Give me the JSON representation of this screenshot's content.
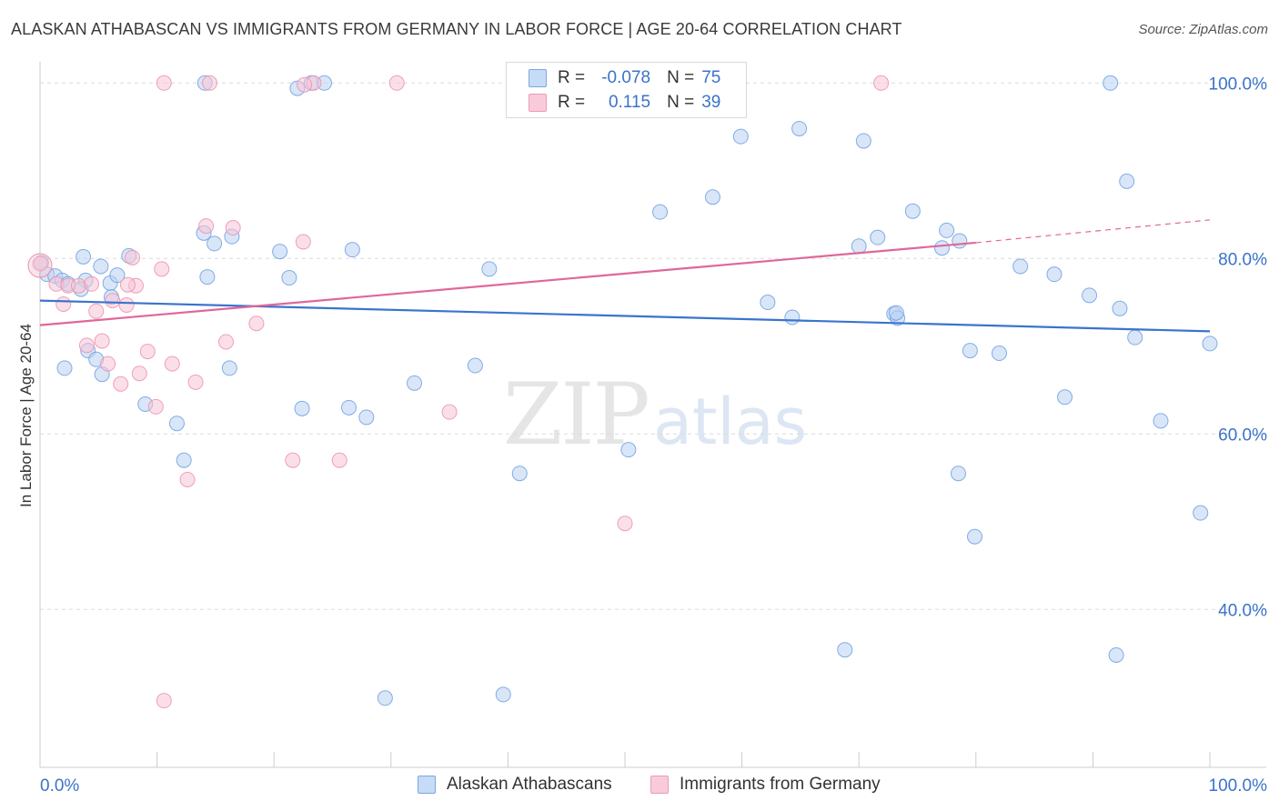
{
  "title": "ALASKAN ATHABASCAN VS IMMIGRANTS FROM GERMANY IN LABOR FORCE | AGE 20-64 CORRELATION CHART",
  "source": "Source: ZipAtlas.com",
  "watermark": {
    "zip": "ZIP",
    "atlas": "atlas"
  },
  "stats": [
    {
      "r_label": "R =",
      "r_value": "-0.078",
      "n_label": "N =",
      "n_value": "75",
      "color": "#a8c8f0"
    },
    {
      "r_label": "R =",
      "r_value": " 0.115",
      "n_label": "N =",
      "n_value": "39",
      "color": "#f4b8cb"
    }
  ],
  "chart_data": {
    "type": "scatter",
    "title": "ALASKAN ATHABASCAN VS IMMIGRANTS FROM GERMANY IN LABOR FORCE | AGE 20-64 CORRELATION CHART",
    "xlabel": "",
    "ylabel": "In Labor Force | Age 20-64",
    "xlim": [
      0,
      100
    ],
    "ylim": [
      22,
      102
    ],
    "x_tick_labels": [
      "0.0%",
      "100.0%"
    ],
    "y_ticks": [
      40,
      60,
      80,
      100
    ],
    "y_tick_labels": [
      "40.0%",
      "60.0%",
      "80.0%",
      "100.0%"
    ],
    "grid": true,
    "legend_position": "bottom",
    "series": [
      {
        "name": "Alaskan Athabascans",
        "color": "#6fa0e0",
        "fill": "#b9d1f2",
        "line_color": "#3a74cc",
        "trend": {
          "x": [
            0,
            100
          ],
          "y": [
            75.2,
            71.7
          ]
        },
        "points": [
          [
            0.1,
            79.5
          ],
          [
            0.6,
            78.2
          ],
          [
            1.3,
            78.0
          ],
          [
            1.9,
            77.5
          ],
          [
            2.4,
            77.1
          ],
          [
            2.1,
            67.5
          ],
          [
            3.9,
            77.5
          ],
          [
            3.7,
            80.2
          ],
          [
            3.5,
            76.5
          ],
          [
            4.1,
            69.5
          ],
          [
            4.8,
            68.5
          ],
          [
            5.2,
            79.1
          ],
          [
            6.0,
            77.2
          ],
          [
            6.6,
            78.1
          ],
          [
            7.6,
            80.3
          ],
          [
            6.1,
            75.6
          ],
          [
            5.3,
            66.8
          ],
          [
            9.0,
            63.4
          ],
          [
            11.7,
            61.2
          ],
          [
            12.3,
            57.0
          ],
          [
            14.3,
            77.9
          ],
          [
            14.9,
            81.7
          ],
          [
            14.0,
            82.9
          ],
          [
            16.4,
            82.5
          ],
          [
            16.2,
            67.5
          ],
          [
            20.5,
            80.8
          ],
          [
            21.3,
            77.8
          ],
          [
            22.4,
            62.9
          ],
          [
            26.4,
            63.0
          ],
          [
            26.7,
            81.0
          ],
          [
            27.9,
            61.9
          ],
          [
            22.0,
            99.4
          ],
          [
            23.2,
            100.0
          ],
          [
            14.1,
            100.0
          ],
          [
            24.3,
            100.0
          ],
          [
            32.0,
            65.8
          ],
          [
            37.2,
            67.8
          ],
          [
            38.4,
            78.8
          ],
          [
            41.0,
            55.5
          ],
          [
            39.6,
            30.3
          ],
          [
            29.5,
            29.9
          ],
          [
            50.3,
            58.2
          ],
          [
            53.0,
            85.3
          ],
          [
            57.5,
            87.0
          ],
          [
            59.9,
            93.9
          ],
          [
            62.2,
            75.0
          ],
          [
            64.3,
            73.3
          ],
          [
            64.9,
            94.8
          ],
          [
            70.4,
            93.4
          ],
          [
            70.0,
            81.4
          ],
          [
            71.6,
            82.4
          ],
          [
            73.0,
            73.7
          ],
          [
            73.3,
            73.2
          ],
          [
            74.6,
            85.4
          ],
          [
            77.1,
            81.2
          ],
          [
            77.5,
            83.2
          ],
          [
            78.6,
            82.0
          ],
          [
            79.5,
            69.5
          ],
          [
            78.5,
            55.5
          ],
          [
            79.9,
            48.3
          ],
          [
            82.0,
            69.2
          ],
          [
            83.8,
            79.1
          ],
          [
            86.7,
            78.2
          ],
          [
            87.6,
            64.2
          ],
          [
            89.7,
            75.8
          ],
          [
            91.5,
            100.0
          ],
          [
            92.0,
            34.8
          ],
          [
            92.9,
            88.8
          ],
          [
            92.3,
            74.3
          ],
          [
            93.6,
            71.0
          ],
          [
            68.8,
            35.4
          ],
          [
            99.2,
            51.0
          ],
          [
            100.0,
            70.3
          ],
          [
            95.8,
            61.5
          ],
          [
            73.2,
            73.8
          ]
        ]
      },
      {
        "name": "Immigrants from Germany",
        "color": "#ec90ae",
        "fill": "#f7c5d5",
        "line_color": "#e0679a",
        "trend": {
          "x": [
            0,
            80
          ],
          "y": [
            72.4,
            81.8
          ]
        },
        "trend_dashed": {
          "x": [
            80,
            100
          ],
          "y": [
            81.8,
            84.4
          ]
        },
        "points": [
          [
            0.0,
            79.4
          ],
          [
            1.4,
            77.1
          ],
          [
            2.4,
            76.9
          ],
          [
            3.3,
            76.9
          ],
          [
            2.0,
            74.8
          ],
          [
            4.4,
            77.1
          ],
          [
            4.8,
            74.0
          ],
          [
            4.0,
            70.1
          ],
          [
            5.3,
            70.6
          ],
          [
            5.8,
            68.0
          ],
          [
            6.2,
            75.2
          ],
          [
            6.9,
            65.7
          ],
          [
            7.4,
            74.7
          ],
          [
            8.2,
            76.9
          ],
          [
            7.9,
            80.1
          ],
          [
            8.5,
            66.9
          ],
          [
            9.2,
            69.4
          ],
          [
            9.9,
            63.1
          ],
          [
            10.4,
            78.8
          ],
          [
            11.3,
            68.0
          ],
          [
            12.6,
            54.8
          ],
          [
            13.3,
            65.9
          ],
          [
            14.2,
            83.7
          ],
          [
            15.9,
            70.5
          ],
          [
            16.5,
            83.5
          ],
          [
            18.5,
            72.6
          ],
          [
            21.6,
            57.0
          ],
          [
            22.5,
            81.9
          ],
          [
            25.6,
            57.0
          ],
          [
            35.0,
            62.5
          ],
          [
            50.0,
            49.8
          ],
          [
            10.6,
            29.6
          ],
          [
            14.5,
            100.0
          ],
          [
            10.6,
            100.0
          ],
          [
            23.4,
            100.0
          ],
          [
            30.5,
            100.0
          ],
          [
            71.9,
            100.0
          ],
          [
            22.6,
            99.8
          ],
          [
            7.5,
            77.0
          ]
        ]
      }
    ]
  }
}
